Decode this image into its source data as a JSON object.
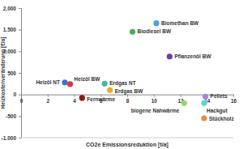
{
  "chart_data": {
    "type": "scatter",
    "x_label": "CO2e Emissionsreduktion [t/a]",
    "y_label": "Heizkostenveränderung [€/a]",
    "labels": [
      "Heizöl NT",
      "Heizöl BW",
      "Fernwärme",
      "Erdgas NT",
      "Erdgas BW",
      "Biodiesel BW",
      "Biomethan BW",
      "Pflanzenöl BW",
      "biogene Nahwärme",
      "Pellets",
      "Hackgut",
      "Stückholz"
    ],
    "x": [
      3.3,
      3.7,
      4.6,
      6.3,
      6.7,
      8.4,
      10.2,
      11.2,
      12.3,
      13.9,
      13.8,
      13.8
    ],
    "values": [
      280,
      240,
      -80,
      250,
      100,
      1450,
      1650,
      880,
      -200,
      -50,
      -200,
      -550
    ],
    "colors": [
      "#3f6fd1",
      "#d23c3c",
      "#8b1a1a",
      "#3fb8a8",
      "#f5a623",
      "#4caf50",
      "#4aa3df",
      "#6a3fa0",
      "#9ed36a",
      "#9b8ae0",
      "#5fd3d3",
      "#f08a3c"
    ],
    "xlim": [
      0,
      16
    ],
    "xticks": [
      0,
      2,
      4,
      6,
      8,
      10,
      12,
      14,
      16
    ],
    "ylim": [
      -1000,
      2000
    ],
    "yticks": [
      {
        "value": -1000,
        "label": "-1.000"
      },
      -500,
      0,
      500,
      {
        "value": 1000,
        "label": "1.000"
      },
      {
        "value": 1500,
        "label": "1.500"
      },
      {
        "value": 2000,
        "label": "2.000"
      }
    ],
    "grid": false,
    "marker": "circle"
  }
}
